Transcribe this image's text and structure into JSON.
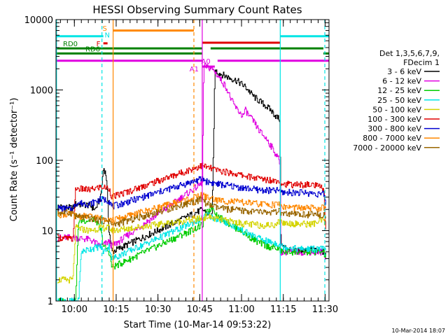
{
  "chart_data": {
    "type": "line",
    "title": "HESSI Observing Summary Count Rates",
    "xlabel": "Start Time (10-Mar-14 09:53:22)",
    "ylabel": "Count Rate (s⁻¹ detector⁻¹)",
    "x_unit": "minutes after 09:53:22",
    "xlim": [
      0,
      98
    ],
    "ylim": [
      1,
      10000
    ],
    "y_scale": "log",
    "x_ticks": [
      {
        "t": 6.6,
        "label": "10:00"
      },
      {
        "t": 21.6,
        "label": "10:15"
      },
      {
        "t": 36.6,
        "label": "10:30"
      },
      {
        "t": 51.6,
        "label": "10:45"
      },
      {
        "t": 66.6,
        "label": "11:00"
      },
      {
        "t": 81.6,
        "label": "11:15"
      },
      {
        "t": 96.6,
        "label": "11:30"
      }
    ],
    "y_ticks": [
      {
        "v": 1,
        "label": "1"
      },
      {
        "v": 10,
        "label": "10"
      },
      {
        "v": 100,
        "label": "100"
      },
      {
        "v": 1000,
        "label": "1000"
      },
      {
        "v": 10000,
        "label": "10000"
      }
    ],
    "legend": {
      "placement": "right",
      "header": [
        "Det 1,3,5,6,7,9,",
        "FDecim 1"
      ],
      "entries": [
        {
          "label": "3 - 6 keV",
          "color": "#000000"
        },
        {
          "label": "6 - 12 keV",
          "color": "#e000e0"
        },
        {
          "label": "12 - 25 keV",
          "color": "#00cc00"
        },
        {
          "label": "25 - 50 keV",
          "color": "#00e5e5"
        },
        {
          "label": "50 - 100 keV",
          "color": "#d4d400"
        },
        {
          "label": "100 - 300 keV",
          "color": "#e00000"
        },
        {
          "label": "300 - 800 keV",
          "color": "#0000d0"
        },
        {
          "label": "800 - 7000 keV",
          "color": "#ff8800"
        },
        {
          "label": "7000 - 20000 keV",
          "color": "#996600"
        }
      ]
    },
    "timestamp": "10-Mar-2014 18:07",
    "flag_bars": [
      {
        "label": "",
        "color": "#00e5e5",
        "level": 5800,
        "segments": [
          [
            0,
            17
          ],
          [
            80.5,
            98
          ]
        ]
      },
      {
        "label": "",
        "color": "#ff8800",
        "level": 7000,
        "segments": [
          [
            20.5,
            49.5
          ]
        ]
      },
      {
        "label": "",
        "color": "#e00000",
        "level": 4700,
        "segments": [
          [
            52.5,
            80.5
          ]
        ]
      },
      {
        "label": "",
        "color": "#e00000",
        "level": 4600,
        "segments": [
          [
            17,
            18.5
          ]
        ]
      },
      {
        "label": "RD0",
        "color": "#008000",
        "level": 3900,
        "segments": [
          [
            0,
            52.5
          ],
          [
            55.5,
            96
          ]
        ]
      },
      {
        "label": "RD6",
        "color": "#008000",
        "level": 3300,
        "segments": [
          [
            0,
            52.5
          ],
          [
            96,
            98
          ]
        ]
      },
      {
        "label": "",
        "color": "#e000e0",
        "level": 2600,
        "segments": [
          [
            0,
            52.5
          ],
          [
            58,
            98
          ]
        ]
      },
      {
        "label": "",
        "color": "#e000e0",
        "level": 2150,
        "segments": [
          [
            52.5,
            57
          ]
        ]
      }
    ],
    "flag_labels": [
      {
        "text": "S",
        "color": "#ff8800",
        "t": 17.5,
        "v": 7600
      },
      {
        "text": "N",
        "color": "#00e5e5",
        "t": 18.4,
        "v": 6100
      },
      {
        "text": "F",
        "color": "#e00000",
        "t": 15.2,
        "v": 4600
      },
      {
        "text": "A1",
        "color": "#e000e0",
        "t": 49.6,
        "v": 2000
      },
      {
        "text": "A0",
        "color": "#e000e0",
        "t": 53.8,
        "v": 2600
      }
    ],
    "vlines": [
      {
        "t": 0.2,
        "color": "#00e5e5",
        "dashed": false
      },
      {
        "t": 16.5,
        "color": "#00e5e5",
        "dashed": true
      },
      {
        "t": 20.5,
        "color": "#ff8800",
        "dashed": false
      },
      {
        "t": 49.5,
        "color": "#ff8800",
        "dashed": true
      },
      {
        "t": 52.5,
        "color": "#e000e0",
        "dashed": false
      },
      {
        "t": 80.5,
        "color": "#00e5e5",
        "dashed": false
      },
      {
        "t": 96.5,
        "color": "#00e5e5",
        "dashed": true
      }
    ],
    "series": [
      {
        "name": "3 - 6 keV",
        "color": "#000000",
        "points": [
          [
            0.5,
            22
          ],
          [
            6,
            21
          ],
          [
            7,
            24
          ],
          [
            12,
            23
          ],
          [
            14,
            20
          ],
          [
            16,
            30
          ],
          [
            17,
            80
          ],
          [
            18,
            60
          ],
          [
            19,
            10
          ],
          [
            20,
            5
          ],
          [
            52.5,
            20
          ],
          [
            54,
            18
          ],
          [
            56,
            16
          ],
          [
            57,
            1900
          ],
          [
            59,
            1700
          ],
          [
            62,
            1500
          ],
          [
            65,
            1350
          ],
          [
            68,
            1100
          ],
          [
            71,
            800
          ],
          [
            74,
            650
          ],
          [
            77,
            520
          ],
          [
            79,
            420
          ],
          [
            80.3,
            380
          ],
          [
            80.6,
            10
          ],
          [
            81,
            6
          ],
          [
            87,
            5
          ],
          [
            92,
            5.5
          ],
          [
            96,
            5
          ],
          [
            97,
            4
          ]
        ]
      },
      {
        "name": "6 - 12 keV",
        "color": "#e000e0",
        "points": [
          [
            0.5,
            8
          ],
          [
            6,
            8
          ],
          [
            12,
            7.5
          ],
          [
            16,
            6
          ],
          [
            19,
            7
          ],
          [
            20,
            6
          ],
          [
            52.5,
            48
          ],
          [
            53,
            2200
          ],
          [
            56,
            2000
          ],
          [
            58,
            1600
          ],
          [
            61,
            1100
          ],
          [
            63,
            700
          ],
          [
            65,
            520
          ],
          [
            67,
            430
          ],
          [
            68,
            520
          ],
          [
            69,
            440
          ],
          [
            71,
            350
          ],
          [
            73,
            260
          ],
          [
            76,
            190
          ],
          [
            78.5,
            130
          ],
          [
            80.3,
            95
          ],
          [
            80.6,
            5
          ],
          [
            96,
            5
          ],
          [
            97,
            4
          ]
        ]
      },
      {
        "name": "12 - 25 keV",
        "color": "#00cc00",
        "points": [
          [
            0.5,
            1
          ],
          [
            6,
            1
          ],
          [
            7,
            1
          ],
          [
            8,
            14
          ],
          [
            12,
            14
          ],
          [
            14,
            15
          ],
          [
            16,
            10
          ],
          [
            17,
            6
          ],
          [
            19,
            5
          ],
          [
            20,
            3
          ],
          [
            52.5,
            12
          ],
          [
            54,
            18
          ],
          [
            56,
            22
          ],
          [
            58,
            16
          ],
          [
            63,
            12
          ],
          [
            68,
            9
          ],
          [
            72,
            7
          ],
          [
            76,
            6
          ],
          [
            80,
            5.5
          ],
          [
            81,
            5
          ],
          [
            87,
            5
          ],
          [
            92,
            5
          ],
          [
            96,
            5
          ],
          [
            97,
            4
          ]
        ]
      },
      {
        "name": "25 - 50 keV",
        "color": "#00e5e5",
        "points": [
          [
            0.5,
            1
          ],
          [
            8,
            1
          ],
          [
            9,
            5
          ],
          [
            12,
            5.5
          ],
          [
            16,
            6
          ],
          [
            17,
            5
          ],
          [
            19,
            6
          ],
          [
            20,
            4
          ],
          [
            52.5,
            15
          ],
          [
            54,
            17
          ],
          [
            57,
            15
          ],
          [
            61,
            13
          ],
          [
            65,
            11
          ],
          [
            68,
            9.5
          ],
          [
            72,
            8
          ],
          [
            76,
            7
          ],
          [
            80,
            6.5
          ],
          [
            81,
            6
          ],
          [
            87,
            5.5
          ],
          [
            92,
            5.5
          ],
          [
            96,
            5.5
          ],
          [
            97,
            5
          ]
        ]
      },
      {
        "name": "50 - 100 keV",
        "color": "#d4d400",
        "points": [
          [
            0.5,
            2
          ],
          [
            5,
            2
          ],
          [
            6,
            2
          ],
          [
            7,
            11
          ],
          [
            12,
            10
          ],
          [
            16,
            11
          ],
          [
            19,
            11
          ],
          [
            20,
            10
          ],
          [
            52.5,
            15
          ],
          [
            54,
            16
          ],
          [
            58,
            14.5
          ],
          [
            63,
            13.5
          ],
          [
            68,
            12.5
          ],
          [
            73,
            12
          ],
          [
            78,
            12
          ],
          [
            80.5,
            14
          ],
          [
            81,
            13
          ],
          [
            87,
            12.5
          ],
          [
            92,
            12.5
          ],
          [
            96,
            14
          ],
          [
            97,
            12
          ]
        ]
      },
      {
        "name": "100 - 300 keV",
        "color": "#e00000",
        "points": [
          [
            0.5,
            8
          ],
          [
            6,
            7.5
          ],
          [
            7,
            40
          ],
          [
            12,
            38
          ],
          [
            16,
            42
          ],
          [
            19,
            40
          ],
          [
            20,
            30
          ],
          [
            52.5,
            85
          ],
          [
            54,
            80
          ],
          [
            58,
            72
          ],
          [
            63,
            66
          ],
          [
            68,
            60
          ],
          [
            73,
            55
          ],
          [
            78,
            52
          ],
          [
            80.5,
            52
          ],
          [
            81,
            46
          ],
          [
            87,
            45
          ],
          [
            92,
            45
          ],
          [
            96,
            40
          ],
          [
            97,
            7
          ]
        ]
      },
      {
        "name": "300 - 800 keV",
        "color": "#0000d0",
        "points": [
          [
            0.5,
            21
          ],
          [
            6,
            20
          ],
          [
            7,
            25
          ],
          [
            12,
            24
          ],
          [
            16,
            28
          ],
          [
            19,
            27
          ],
          [
            20,
            22
          ],
          [
            52.5,
            55
          ],
          [
            54,
            50
          ],
          [
            58,
            46
          ],
          [
            63,
            43
          ],
          [
            68,
            40
          ],
          [
            73,
            38
          ],
          [
            78,
            37
          ],
          [
            80.5,
            38
          ],
          [
            81,
            35
          ],
          [
            87,
            35
          ],
          [
            92,
            34
          ],
          [
            96,
            33
          ],
          [
            97,
            24
          ]
        ]
      },
      {
        "name": "800 - 7000 keV",
        "color": "#ff8800",
        "points": [
          [
            0.5,
            17
          ],
          [
            6,
            17
          ],
          [
            7,
            16
          ],
          [
            12,
            16
          ],
          [
            16,
            15
          ],
          [
            19,
            15
          ],
          [
            20,
            14
          ],
          [
            52.5,
            32
          ],
          [
            54,
            30
          ],
          [
            58,
            27
          ],
          [
            63,
            26
          ],
          [
            68,
            25
          ],
          [
            73,
            24
          ],
          [
            78,
            23.5
          ],
          [
            80.5,
            24
          ],
          [
            81,
            22
          ],
          [
            87,
            21
          ],
          [
            92,
            21
          ],
          [
            96,
            21
          ],
          [
            97,
            20
          ]
        ]
      },
      {
        "name": "7000 - 20000 keV",
        "color": "#996600",
        "points": [
          [
            0.5,
            18
          ],
          [
            6,
            18
          ],
          [
            7,
            16
          ],
          [
            12,
            15
          ],
          [
            16,
            14
          ],
          [
            19,
            14
          ],
          [
            20,
            12
          ],
          [
            52.5,
            28
          ],
          [
            54,
            24
          ],
          [
            58,
            21
          ],
          [
            63,
            20
          ],
          [
            68,
            19
          ],
          [
            73,
            18.5
          ],
          [
            78,
            18
          ],
          [
            80.5,
            19
          ],
          [
            81,
            17
          ],
          [
            87,
            17
          ],
          [
            92,
            17
          ],
          [
            96,
            17
          ],
          [
            97,
            16
          ]
        ]
      }
    ]
  }
}
